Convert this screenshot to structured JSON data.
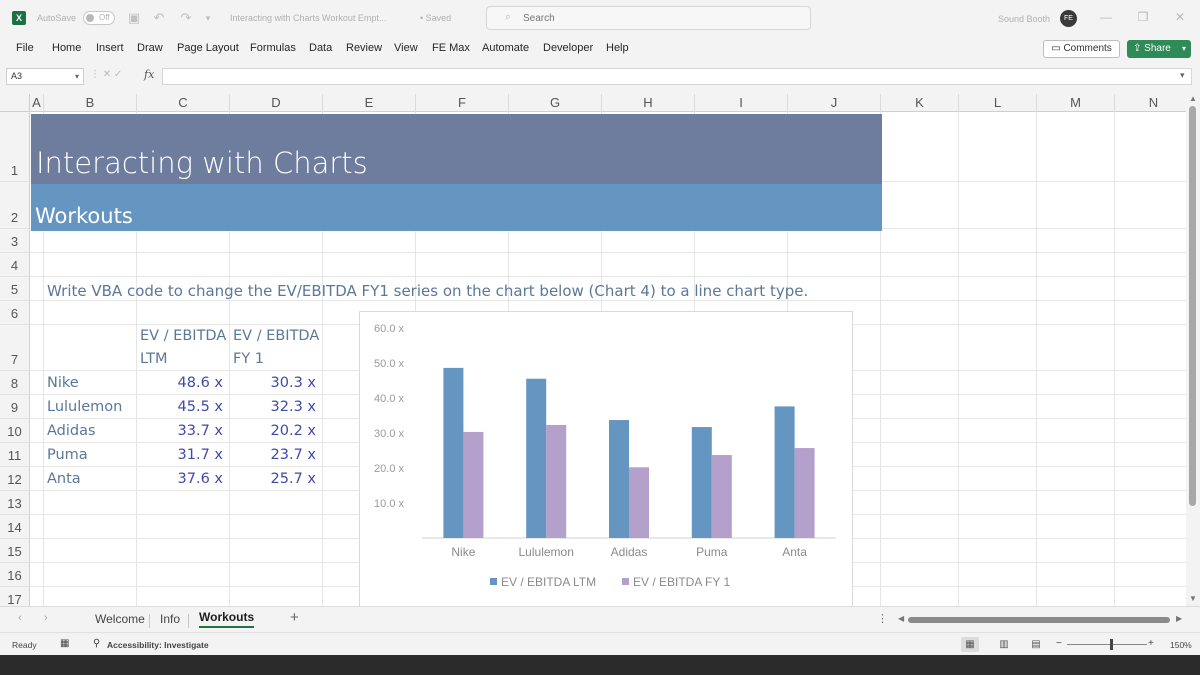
{
  "titlebar": {
    "autosave_label": "AutoSave",
    "autosave_state": "Off",
    "doc_title": "Interacting with Charts Workout Empt...",
    "saved_status": "• Saved",
    "search_placeholder": "Search",
    "user_name": "Sound Booth",
    "avatar_initials": "FE"
  },
  "menu": {
    "items": [
      "File",
      "Home",
      "Insert",
      "Draw",
      "Page Layout",
      "Formulas",
      "Data",
      "Review",
      "View",
      "FE Max",
      "Automate",
      "Developer",
      "Help"
    ],
    "comments_label": "Comments",
    "share_label": "Share"
  },
  "formula_bar": {
    "name_box": "A3",
    "fx_label": "fx",
    "formula": ""
  },
  "grid": {
    "columns": [
      "A",
      "B",
      "C",
      "D",
      "E",
      "F",
      "G",
      "H",
      "I",
      "J",
      "K",
      "L",
      "M",
      "N"
    ],
    "rows": [
      "1",
      "2",
      "3",
      "4",
      "5",
      "6",
      "7",
      "8",
      "9",
      "10",
      "11",
      "12",
      "13",
      "14",
      "15",
      "16",
      "17"
    ]
  },
  "sheet": {
    "title": "Interacting with Charts",
    "subtitle": "Workouts",
    "instruction": "Write VBA code to change the EV/EBITDA FY1 series on the chart below (Chart 4) to a line chart type.",
    "table": {
      "header_ltm_line1": "EV / EBITDA",
      "header_ltm_line2": "LTM",
      "header_fy1_line1": "EV / EBITDA",
      "header_fy1_line2": "FY 1",
      "rows": [
        {
          "company": "Nike",
          "ltm": "48.6 x",
          "fy1": "30.3 x"
        },
        {
          "company": "Lululemon",
          "ltm": "45.5 x",
          "fy1": "32.3 x"
        },
        {
          "company": "Adidas",
          "ltm": "33.7 x",
          "fy1": "20.2 x"
        },
        {
          "company": "Puma",
          "ltm": "31.7 x",
          "fy1": "23.7 x"
        },
        {
          "company": "Anta",
          "ltm": "37.6 x",
          "fy1": "25.7 x"
        }
      ]
    }
  },
  "chart_data": {
    "type": "bar",
    "categories": [
      "Nike",
      "Lululemon",
      "Adidas",
      "Puma",
      "Anta"
    ],
    "series": [
      {
        "name": "EV / EBITDA LTM",
        "values": [
          48.6,
          45.5,
          33.7,
          31.7,
          37.6
        ],
        "color": "#6596c2"
      },
      {
        "name": "EV / EBITDA FY 1",
        "values": [
          30.3,
          32.3,
          20.2,
          23.7,
          25.7
        ],
        "color": "#b3a0cb"
      }
    ],
    "yticks": [
      "10.0 x",
      "20.0 x",
      "30.0 x",
      "40.0 x",
      "50.0 x",
      "60.0 x"
    ],
    "ylim": [
      0,
      60
    ],
    "legend_position": "bottom",
    "grid": false
  },
  "tabs": {
    "items": [
      "Welcome",
      "Info",
      "Workouts"
    ],
    "active": "Workouts",
    "add_label": "+"
  },
  "status": {
    "ready": "Ready",
    "accessibility": "Accessibility: Investigate",
    "zoom": "150%"
  }
}
